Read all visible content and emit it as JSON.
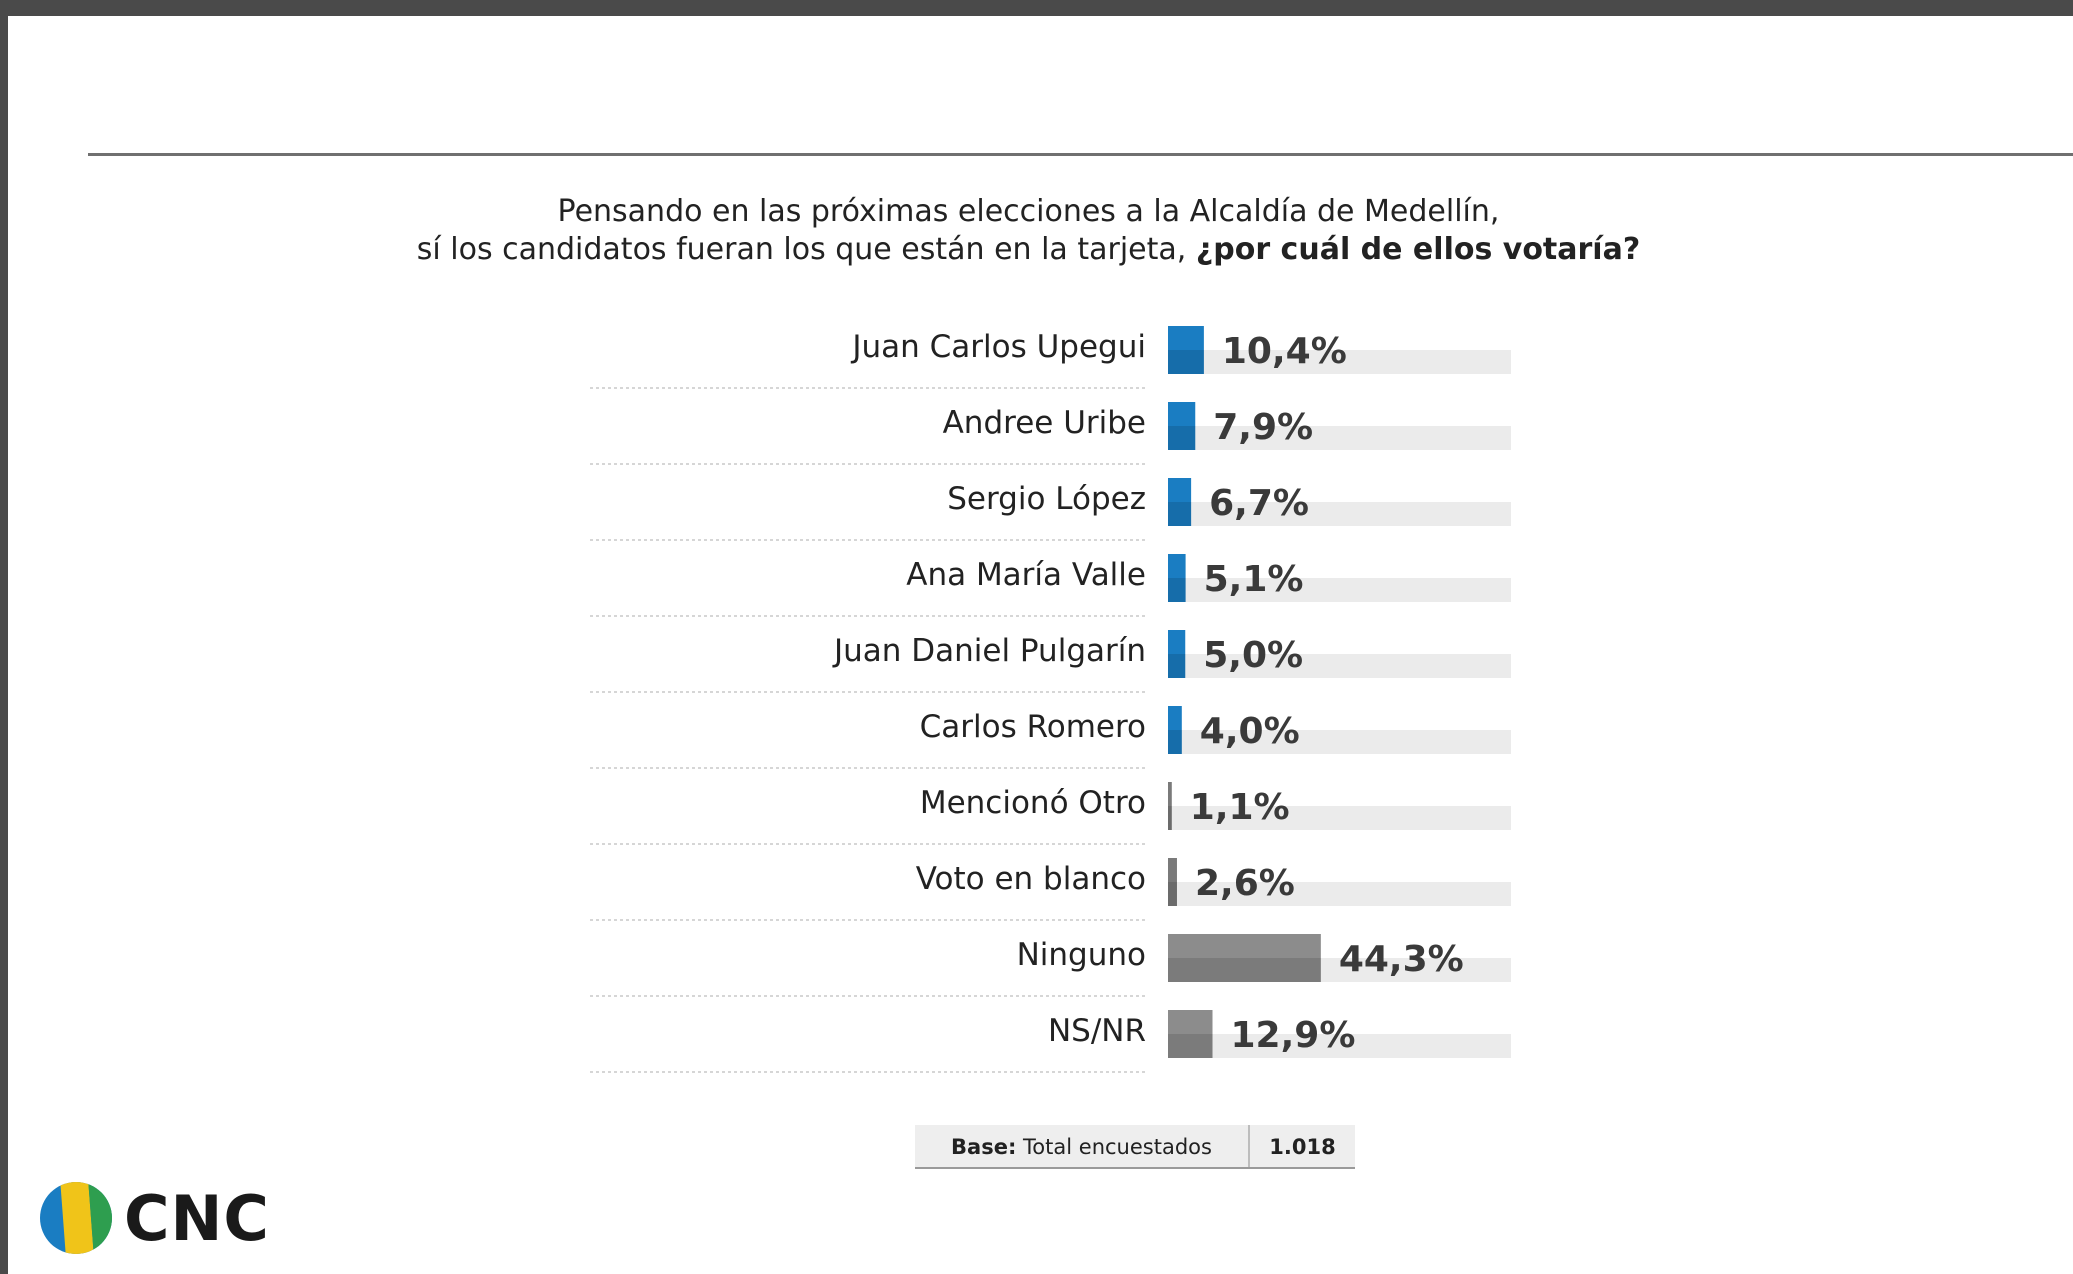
{
  "title": {
    "line1": "Pensando en las próximas elecciones a la Alcaldía de Medellín,",
    "line2_regular": "sí los candidatos fueran los que están en la tarjeta, ",
    "line2_bold": "¿por cuál de ellos votaría?"
  },
  "chart_data": {
    "type": "bar",
    "orientation": "horizontal",
    "unit": "%",
    "xlim": [
      0,
      100
    ],
    "categories": [
      "Juan Carlos Upegui",
      "Andree Uribe",
      "Sergio López",
      "Ana María Valle",
      "Juan Daniel Pulgarín",
      "Carlos Romero",
      "Mencionó Otro",
      "Voto en blanco",
      "Ninguno",
      "NS/NR"
    ],
    "values": [
      10.4,
      7.9,
      6.7,
      5.1,
      5.0,
      4.0,
      1.1,
      2.6,
      44.3,
      12.9
    ],
    "value_labels": [
      "10,4%",
      "7,9%",
      "6,7%",
      "5,1%",
      "5,0%",
      "4,0%",
      "1,1%",
      "2,6%",
      "44,3%",
      "12,9%"
    ],
    "colors": [
      "#1a7dc2",
      "#1a7dc2",
      "#1a7dc2",
      "#1a7dc2",
      "#1a7dc2",
      "#1a7dc2",
      "#7a7a7a",
      "#7a7a7a",
      "#8c8c8c",
      "#8c8c8c"
    ],
    "track_color": "#ebebeb",
    "grid": false,
    "legend": "none"
  },
  "base": {
    "label_bold": "Base:",
    "label_text": " Total encuestados",
    "value": "1.018"
  },
  "logo": {
    "text": "CNC",
    "colors": [
      "#1a7dc2",
      "#f0c419",
      "#2e9e4f"
    ]
  }
}
